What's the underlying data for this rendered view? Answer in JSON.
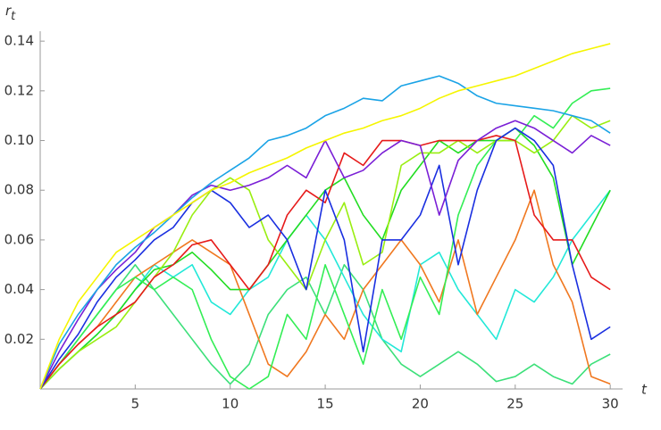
{
  "chart_data": {
    "type": "line",
    "x_label": "t",
    "y_label": "r",
    "y_label_subscript": "t",
    "x": [
      0,
      1,
      2,
      3,
      4,
      5,
      6,
      7,
      8,
      9,
      10,
      11,
      12,
      13,
      14,
      15,
      16,
      17,
      18,
      19,
      20,
      21,
      22,
      23,
      24,
      25,
      26,
      27,
      28,
      29,
      30
    ],
    "xlim": [
      0,
      30.65
    ],
    "ylim": [
      0,
      0.144
    ],
    "xticks": [
      5,
      10,
      15,
      20,
      25,
      30
    ],
    "yticks": [
      0.02,
      0.04,
      0.06,
      0.08,
      {
        "value": 0.1,
        "label": "0.10"
      },
      0.12,
      0.14
    ],
    "series": [
      {
        "color": "#3de07a",
        "values": [
          0,
          0.01,
          0.02,
          0.03,
          0.04,
          0.05,
          0.04,
          0.03,
          0.02,
          0.01,
          0.002,
          0.01,
          0.03,
          0.04,
          0.045,
          0.03,
          0.05,
          0.04,
          0.02,
          0.01,
          0.005,
          0.01,
          0.015,
          0.01,
          0.003,
          0.005,
          0.01,
          0.005,
          0.002,
          0.01,
          0.014
        ]
      },
      {
        "color": "#22e8d8",
        "values": [
          0,
          0.008,
          0.015,
          0.022,
          0.03,
          0.04,
          0.05,
          0.045,
          0.05,
          0.035,
          0.03,
          0.04,
          0.045,
          0.06,
          0.07,
          0.06,
          0.045,
          0.03,
          0.02,
          0.015,
          0.05,
          0.055,
          0.04,
          0.03,
          0.02,
          0.04,
          0.035,
          0.045,
          0.06,
          0.07,
          0.08
        ]
      },
      {
        "color": "#f07820",
        "values": [
          0,
          0.01,
          0.018,
          0.025,
          0.035,
          0.045,
          0.05,
          0.055,
          0.06,
          0.055,
          0.05,
          0.03,
          0.01,
          0.005,
          0.015,
          0.03,
          0.02,
          0.04,
          0.05,
          0.06,
          0.05,
          0.035,
          0.06,
          0.03,
          0.045,
          0.06,
          0.08,
          0.05,
          0.035,
          0.005,
          0.002
        ]
      },
      {
        "color": "#22dd22",
        "values": [
          0,
          0.008,
          0.015,
          0.022,
          0.03,
          0.04,
          0.048,
          0.05,
          0.055,
          0.048,
          0.04,
          0.04,
          0.05,
          0.06,
          0.07,
          0.08,
          0.085,
          0.07,
          0.06,
          0.08,
          0.09,
          0.1,
          0.095,
          0.1,
          0.1,
          0.105,
          0.098,
          0.085,
          0.05,
          0.065,
          0.08
        ]
      },
      {
        "color": "#33ee55",
        "values": [
          0,
          0.01,
          0.02,
          0.03,
          0.04,
          0.045,
          0.04,
          0.045,
          0.04,
          0.02,
          0.005,
          0,
          0.005,
          0.03,
          0.02,
          0.05,
          0.03,
          0.01,
          0.04,
          0.02,
          0.045,
          0.03,
          0.07,
          0.09,
          0.1,
          0.1,
          0.11,
          0.105,
          0.115,
          0.12,
          0.121
        ]
      },
      {
        "color": "#99ee11",
        "values": [
          0,
          0.008,
          0.015,
          0.02,
          0.025,
          0.035,
          0.045,
          0.055,
          0.07,
          0.08,
          0.085,
          0.08,
          0.06,
          0.05,
          0.04,
          0.06,
          0.075,
          0.05,
          0.055,
          0.09,
          0.095,
          0.095,
          0.1,
          0.095,
          0.1,
          0.1,
          0.095,
          0.1,
          0.11,
          0.105,
          0.108
        ]
      },
      {
        "color": "#e61a1a",
        "values": [
          0,
          0.01,
          0.018,
          0.025,
          0.03,
          0.035,
          0.045,
          0.05,
          0.058,
          0.06,
          0.05,
          0.04,
          0.05,
          0.07,
          0.08,
          0.075,
          0.095,
          0.09,
          0.1,
          0.1,
          0.098,
          0.1,
          0.1,
          0.1,
          0.102,
          0.1,
          0.07,
          0.06,
          0.06,
          0.045,
          0.04
        ]
      },
      {
        "color": "#1a2fe0",
        "values": [
          0,
          0.012,
          0.022,
          0.035,
          0.045,
          0.052,
          0.06,
          0.065,
          0.075,
          0.08,
          0.075,
          0.065,
          0.07,
          0.06,
          0.04,
          0.08,
          0.06,
          0.015,
          0.06,
          0.06,
          0.07,
          0.09,
          0.05,
          0.08,
          0.1,
          0.105,
          0.1,
          0.09,
          0.05,
          0.02,
          0.025
        ]
      },
      {
        "color": "#7a1fd6",
        "values": [
          0,
          0.015,
          0.028,
          0.04,
          0.048,
          0.055,
          0.065,
          0.07,
          0.078,
          0.082,
          0.08,
          0.082,
          0.085,
          0.09,
          0.085,
          0.1,
          0.085,
          0.088,
          0.095,
          0.1,
          0.098,
          0.07,
          0.092,
          0.1,
          0.105,
          0.108,
          0.105,
          0.1,
          0.095,
          0.102,
          0.098
        ]
      },
      {
        "color": "#1aa3e6",
        "values": [
          0,
          0.018,
          0.03,
          0.04,
          0.05,
          0.057,
          0.063,
          0.07,
          0.077,
          0.083,
          0.088,
          0.093,
          0.1,
          0.102,
          0.105,
          0.11,
          0.113,
          0.117,
          0.116,
          0.122,
          0.124,
          0.126,
          0.123,
          0.118,
          0.115,
          0.114,
          0.113,
          0.112,
          0.11,
          0.108,
          0.103
        ]
      },
      {
        "color": "#f5f500",
        "values": [
          0,
          0.02,
          0.035,
          0.045,
          0.055,
          0.06,
          0.065,
          0.07,
          0.075,
          0.08,
          0.083,
          0.087,
          0.09,
          0.093,
          0.097,
          0.1,
          0.103,
          0.105,
          0.108,
          0.11,
          0.113,
          0.117,
          0.12,
          0.122,
          0.124,
          0.126,
          0.129,
          0.132,
          0.135,
          0.137,
          0.139
        ]
      }
    ]
  }
}
